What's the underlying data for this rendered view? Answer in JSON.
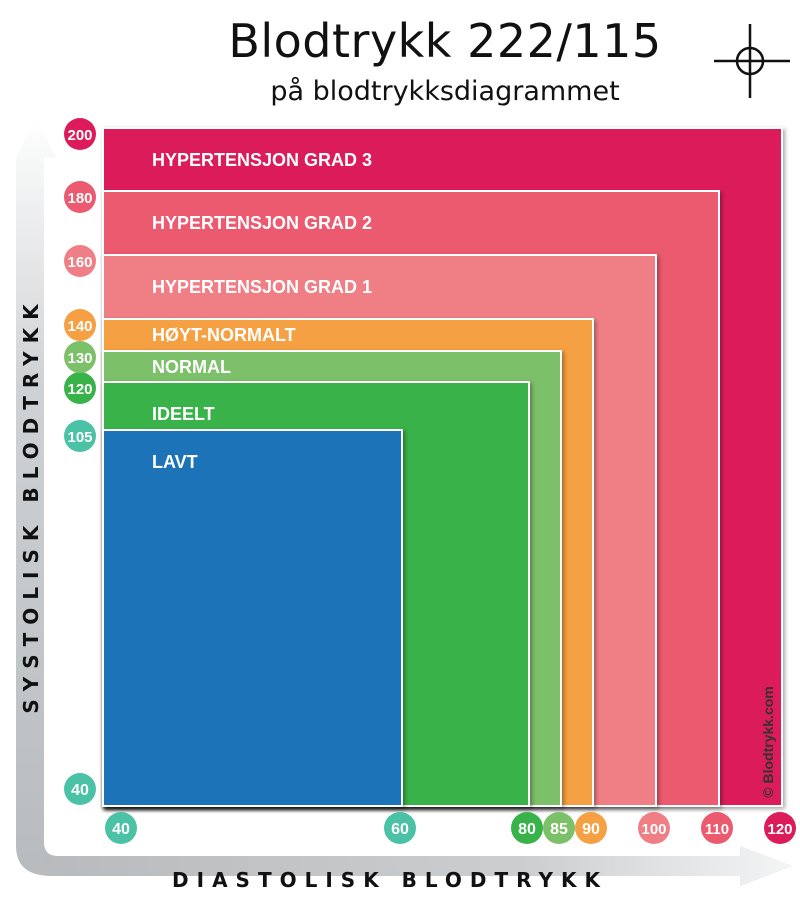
{
  "title": "Blodtrykk 222/115",
  "subtitle": "på blodtrykksdiagrammet",
  "chart_data": {
    "type": "area",
    "title": "Blodtrykk 222/115",
    "subtitle": "på blodtrykksdiagrammet",
    "xlabel": "DIASTOLISK BLODTRYKK",
    "ylabel": "SYSTOLISK BLODTRYKK",
    "x_ticks": [
      40,
      60,
      80,
      85,
      90,
      100,
      110,
      120
    ],
    "y_ticks": [
      40,
      105,
      120,
      130,
      140,
      160,
      180,
      200
    ],
    "xlim": [
      40,
      120
    ],
    "ylim": [
      40,
      200
    ],
    "zones": [
      {
        "label": "HYPERTENSJON GRAD 3",
        "max_diastolic": 120,
        "max_systolic": 200,
        "color": "#dc1c5a"
      },
      {
        "label": "HYPERTENSJON GRAD 2",
        "max_diastolic": 110,
        "max_systolic": 180,
        "color": "#eb5a6e"
      },
      {
        "label": "HYPERTENSJON GRAD 1",
        "max_diastolic": 100,
        "max_systolic": 160,
        "color": "#f07f85"
      },
      {
        "label": "HØYT-NORMALT",
        "max_diastolic": 90,
        "max_systolic": 140,
        "color": "#f5a043"
      },
      {
        "label": "NORMAL",
        "max_diastolic": 85,
        "max_systolic": 130,
        "color": "#7cc06a"
      },
      {
        "label": "IDEELT",
        "max_diastolic": 80,
        "max_systolic": 120,
        "color": "#39b24a"
      },
      {
        "label": "LAVT",
        "max_diastolic": 60,
        "max_systolic": 105,
        "color": "#1e73b8"
      }
    ],
    "x_tick_colors": {
      "40": "#4bc2a6",
      "60": "#4bc2a6",
      "80": "#39b24a",
      "85": "#7cc06a",
      "90": "#f5a043",
      "100": "#f07f85",
      "110": "#eb5a6e",
      "120": "#dc1c5a"
    },
    "y_tick_colors": {
      "40": "#4bc2a6",
      "105": "#4bc2a6",
      "120": "#39b24a",
      "130": "#7cc06a",
      "140": "#f5a043",
      "160": "#f07f85",
      "180": "#eb5a6e",
      "200": "#dc1c5a"
    },
    "watermark": "© Blodtrykk.com"
  }
}
